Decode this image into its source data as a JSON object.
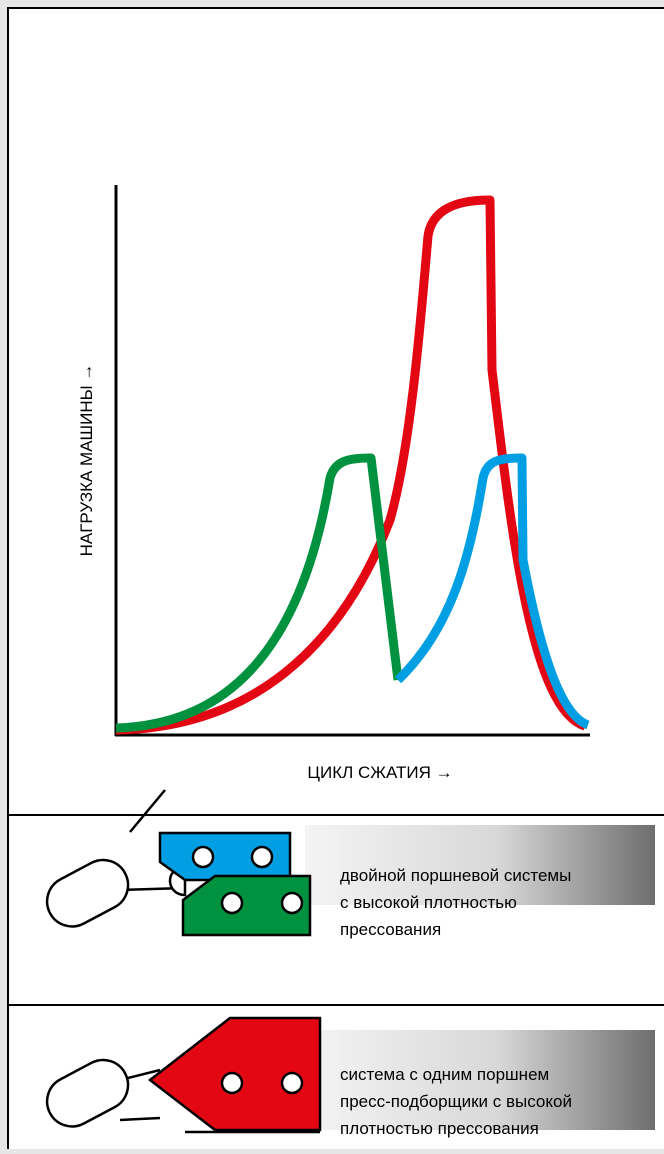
{
  "chart": {
    "y_axis_label": "НАГРУЗКА МАШИНЫ →",
    "x_axis_label": "ЦИКЛ СЖАТИЯ →"
  },
  "panels": [
    {
      "lines": [
        "двойной поршневой системы",
        "с высокой плотностью",
        "прессования"
      ]
    },
    {
      "lines": [
        "система с одним поршнем",
        "пресс-подборщики с высокой",
        "плотностью прессования"
      ]
    }
  ]
}
